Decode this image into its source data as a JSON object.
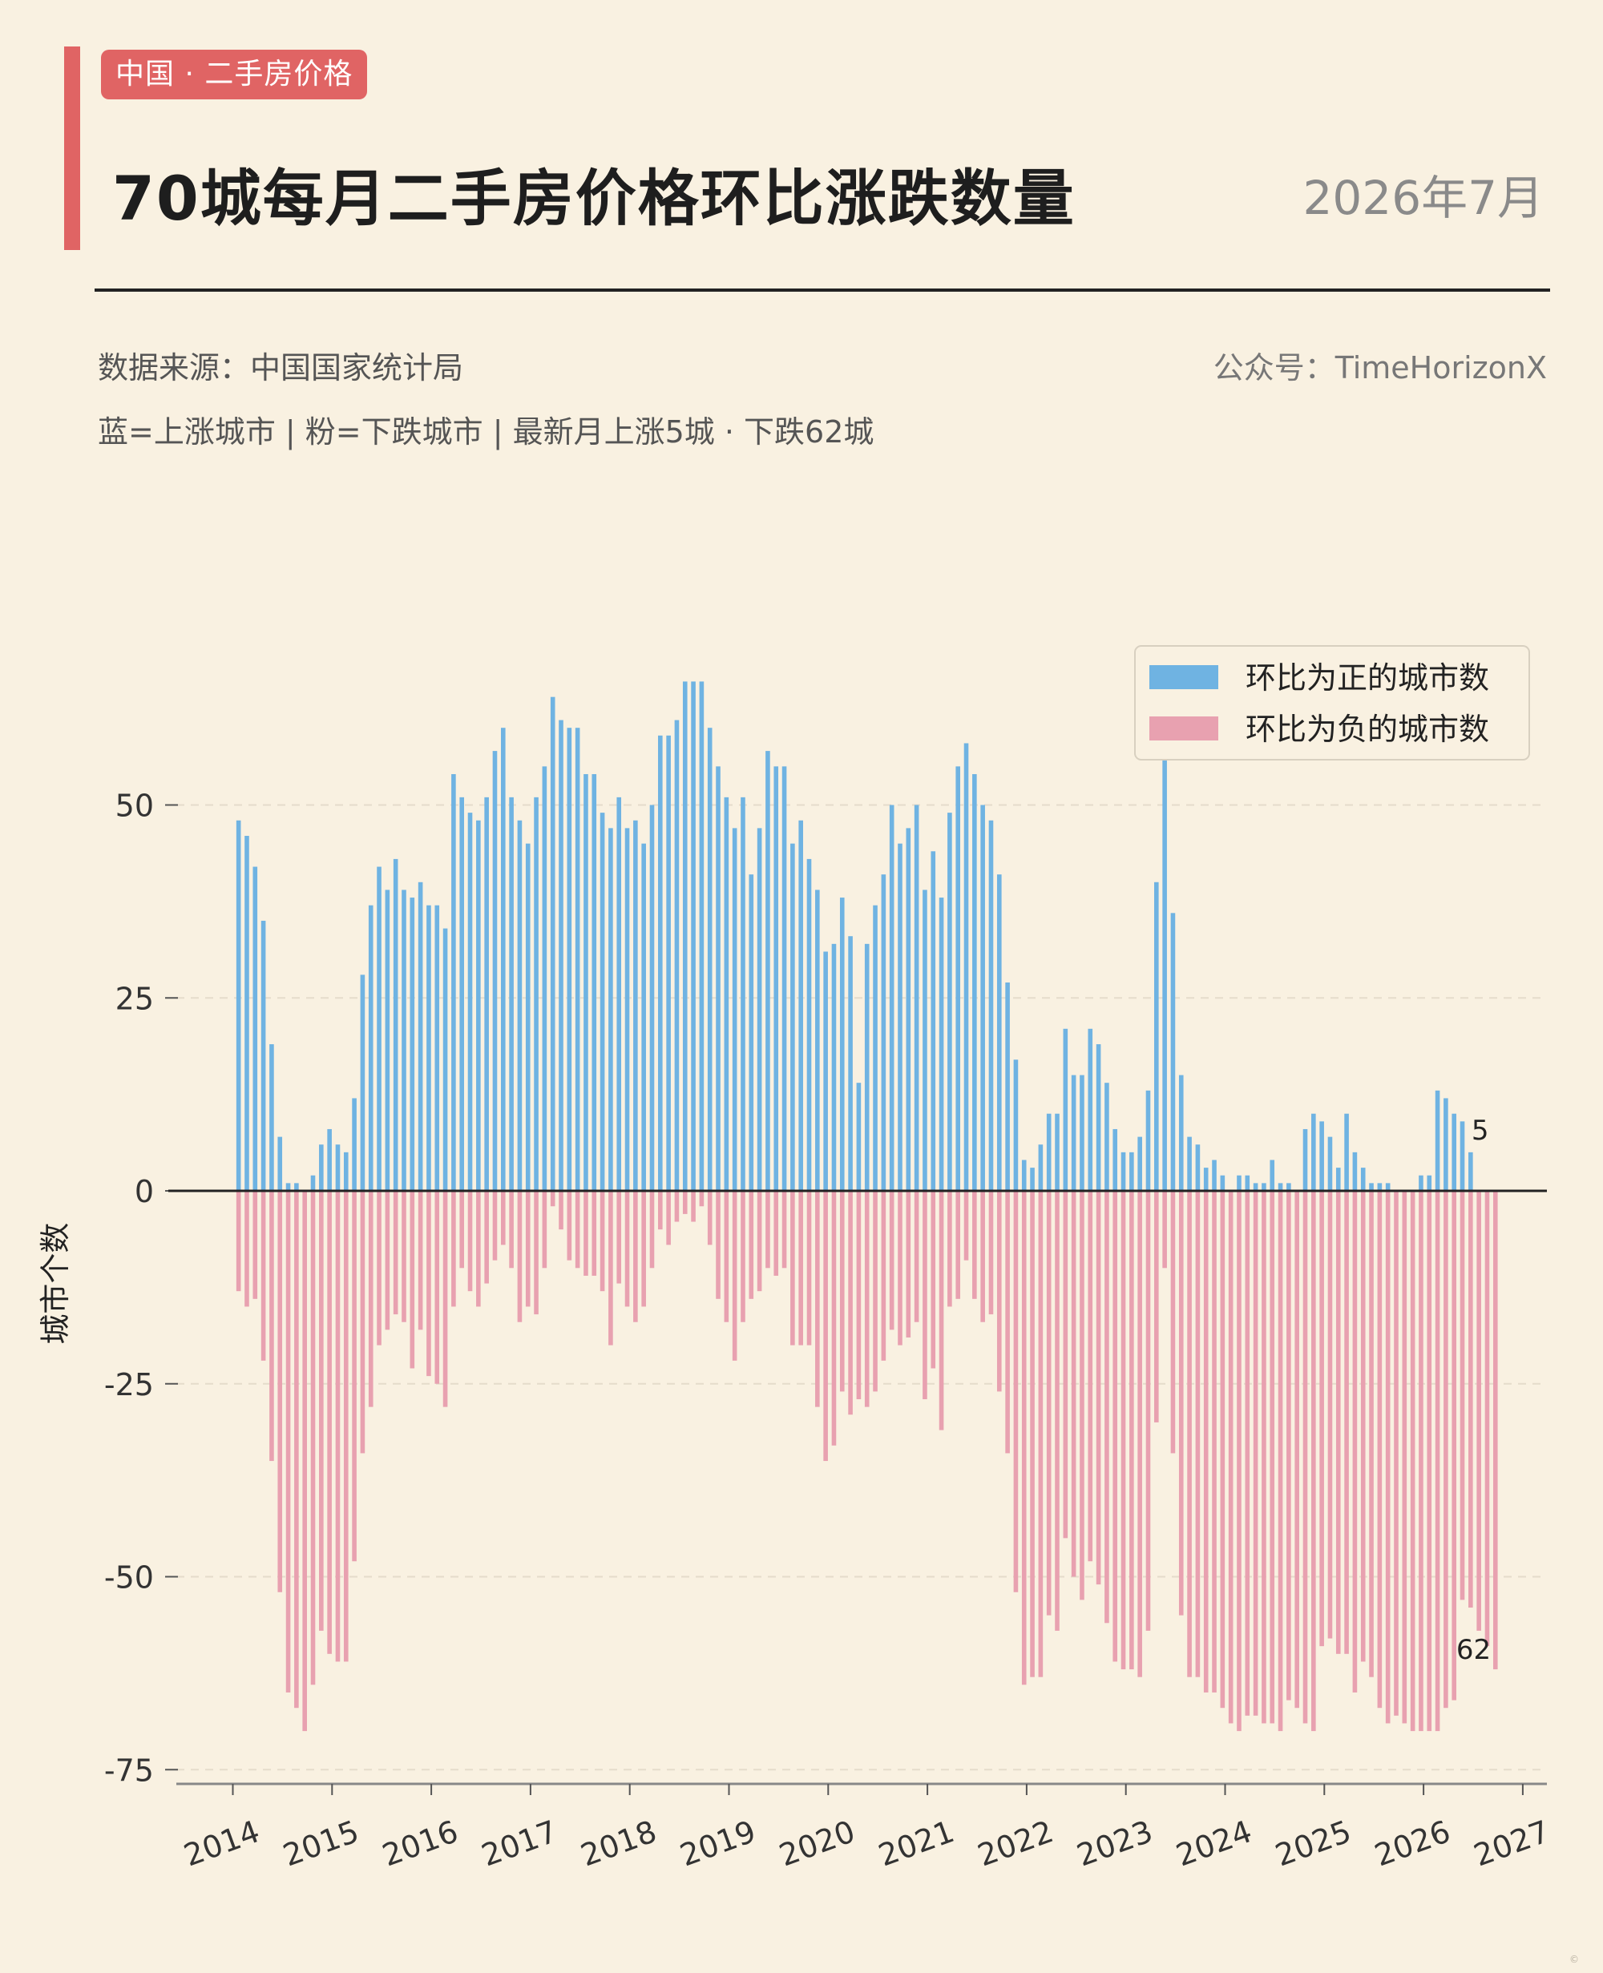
{
  "header": {
    "tag": "中国 · 二手房价格",
    "title": "70城每月二手房价格环比涨跌数量",
    "date": "2026年7月",
    "source": "数据来源：中国国家统计局",
    "account": "公众号：TimeHorizonX",
    "note": "蓝=上涨城市 | 粉=下跌城市 | 最新月上涨5城 · 下跌62城"
  },
  "colors": {
    "up": "#6fb3e2",
    "down": "#e8a1b0",
    "accent": "#e06464",
    "background": "#f9f1e1"
  },
  "chart_data": {
    "type": "bar",
    "ylabel": "城市个数",
    "ylim": [
      -77,
      70
    ],
    "yticks": [
      50,
      25,
      0,
      -25,
      -50,
      -75
    ],
    "x_start": "2014-01",
    "xticks": [
      "2014",
      "2015",
      "2016",
      "2017",
      "2018",
      "2019",
      "2020",
      "2021",
      "2022",
      "2023",
      "2024",
      "2025",
      "2026",
      "2027"
    ],
    "grid": "horizontal dashed",
    "legend_position": "top-right",
    "series": [
      {
        "name": "环比为正的城市数",
        "color": "#6fb3e2",
        "values": [
          48,
          46,
          42,
          35,
          19,
          7,
          1,
          1,
          0,
          2,
          6,
          8,
          6,
          5,
          12,
          28,
          37,
          42,
          39,
          43,
          39,
          38,
          40,
          37,
          37,
          34,
          54,
          51,
          49,
          48,
          51,
          57,
          60,
          51,
          48,
          45,
          51,
          55,
          64,
          61,
          60,
          60,
          54,
          54,
          49,
          47,
          51,
          47,
          48,
          45,
          50,
          59,
          59,
          61,
          66,
          66,
          66,
          60,
          55,
          51,
          47,
          51,
          41,
          47,
          57,
          55,
          55,
          45,
          48,
          43,
          39,
          31,
          32,
          38,
          33,
          14,
          32,
          37,
          41,
          50,
          45,
          47,
          50,
          39,
          44,
          38,
          49,
          55,
          58,
          54,
          50,
          48,
          41,
          27,
          17,
          4,
          3,
          6,
          10,
          10,
          21,
          15,
          15,
          21,
          19,
          14,
          8,
          5,
          5,
          7,
          13,
          40,
          57,
          36,
          15,
          7,
          6,
          3,
          4,
          2,
          0,
          2,
          2,
          1,
          1,
          4,
          1,
          1,
          0,
          8,
          10,
          9,
          7,
          3,
          10,
          5,
          3,
          1,
          1,
          1,
          0,
          0,
          0,
          2,
          2,
          13,
          12,
          10,
          9,
          5
        ],
        "end_label": "5"
      },
      {
        "name": "环比为负的城市数",
        "color": "#e8a1b0",
        "values": [
          -13,
          -15,
          -14,
          -22,
          -35,
          -52,
          -65,
          -67,
          -70,
          -64,
          -57,
          -60,
          -61,
          -61,
          -48,
          -34,
          -28,
          -20,
          -18,
          -16,
          -17,
          -23,
          -18,
          -24,
          -25,
          -28,
          -15,
          -10,
          -13,
          -15,
          -12,
          -9,
          -7,
          -10,
          -17,
          -15,
          -16,
          -10,
          -2,
          -5,
          -9,
          -10,
          -11,
          -11,
          -13,
          -20,
          -12,
          -15,
          -17,
          -15,
          -10,
          -5,
          -7,
          -4,
          -3,
          -4,
          -2,
          -7,
          -14,
          -17,
          -22,
          -17,
          -14,
          -13,
          -10,
          -11,
          -10,
          -20,
          -20,
          -20,
          -28,
          -35,
          -33,
          -26,
          -29,
          -27,
          -28,
          -26,
          -22,
          -18,
          -20,
          -19,
          -17,
          -27,
          -23,
          -31,
          -15,
          -14,
          -9,
          -14,
          -17,
          -16,
          -26,
          -34,
          -52,
          -64,
          -63,
          -63,
          -55,
          -57,
          -45,
          -50,
          -53,
          -48,
          -51,
          -56,
          -61,
          -62,
          -62,
          -63,
          -57,
          -30,
          -10,
          -34,
          -55,
          -63,
          -63,
          -65,
          -65,
          -67,
          -69,
          -70,
          -68,
          -68,
          -69,
          -69,
          -70,
          -66,
          -67,
          -69,
          -70,
          -59,
          -58,
          -60,
          -60,
          -65,
          -61,
          -63,
          -67,
          -69,
          -68,
          -69,
          -70,
          -70,
          -70,
          -70,
          -67,
          -66,
          -53,
          -54,
          -57,
          -59,
          -62
        ],
        "end_label": "62"
      }
    ]
  },
  "footer": "©"
}
